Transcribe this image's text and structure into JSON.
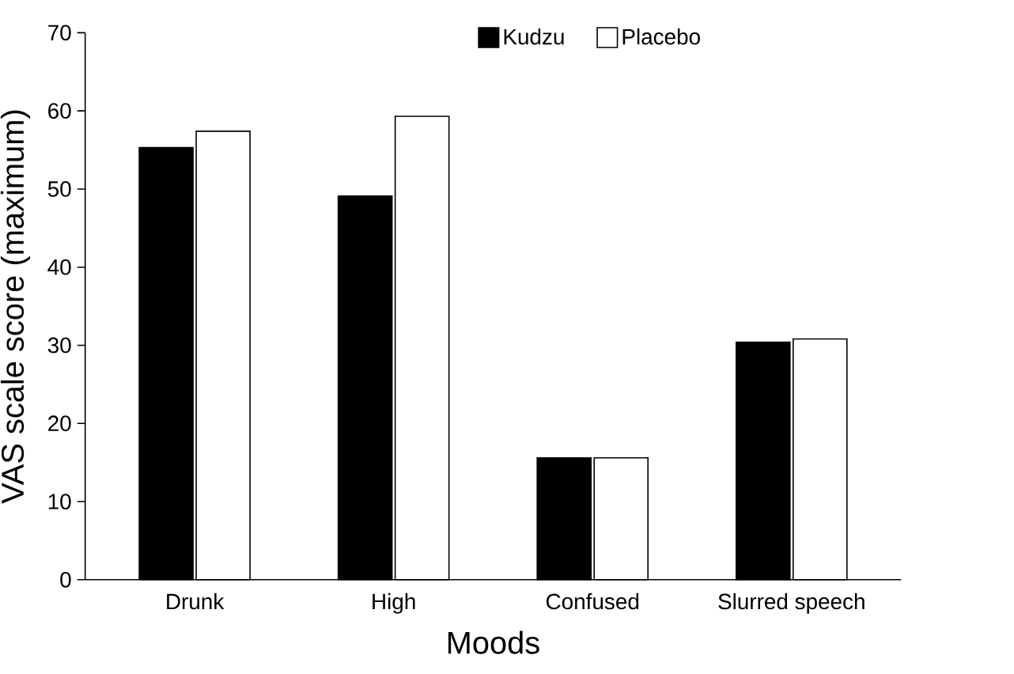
{
  "chart_data": {
    "type": "bar",
    "xlabel": "Moods",
    "ylabel": "VAS scale score (maximum)",
    "categories": [
      "Drunk",
      "High",
      "Confused",
      "Slurred speech"
    ],
    "series": [
      {
        "name": "Kudzu",
        "color": "#000000",
        "values": [
          55.3,
          49.1,
          15.6,
          30.4
        ]
      },
      {
        "name": "Placebo",
        "color": "#ffffff",
        "values": [
          57.4,
          59.3,
          15.6,
          30.8
        ]
      }
    ],
    "ylim": [
      0,
      70
    ],
    "yticks": [
      0,
      10,
      20,
      30,
      40,
      50,
      60,
      70
    ],
    "legend": "top",
    "grid": false
  }
}
